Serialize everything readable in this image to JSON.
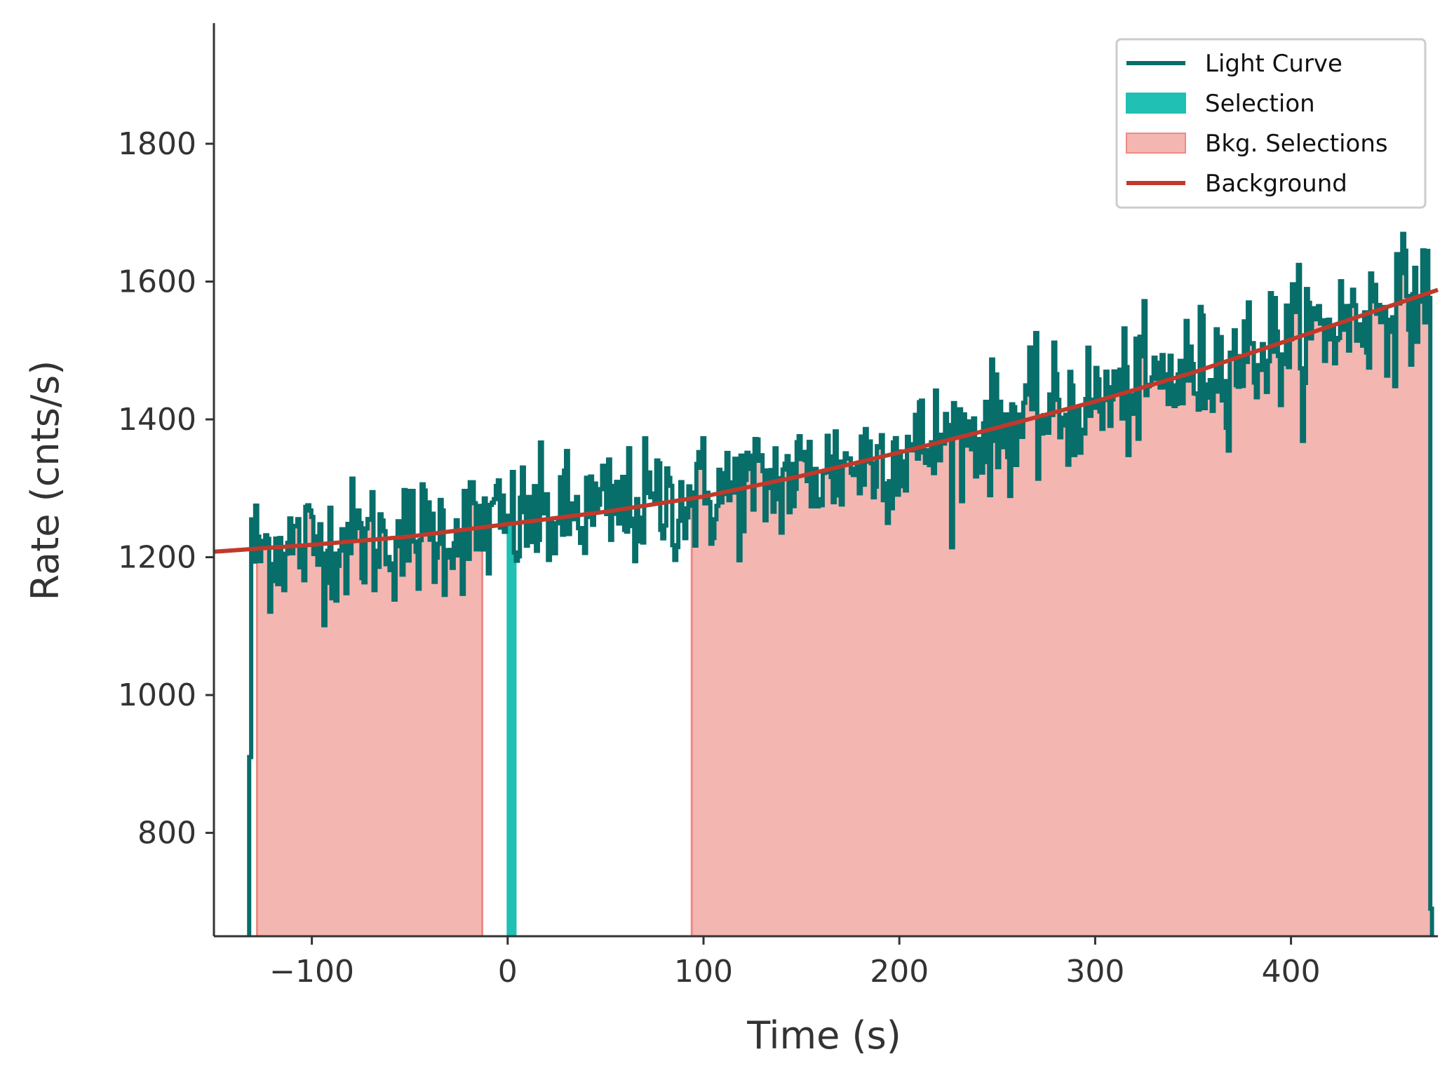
{
  "chart_data": {
    "type": "line",
    "title": "",
    "xlabel": "Time (s)",
    "ylabel": "Rate (cnts/s)",
    "xlim": [
      -150,
      475
    ],
    "ylim": [
      650,
      1975
    ],
    "x_ticks": [
      -100,
      0,
      100,
      200,
      300,
      400
    ],
    "x_tick_labels": [
      "−100",
      "0",
      "100",
      "200",
      "300",
      "400"
    ],
    "y_ticks": [
      800,
      1000,
      1200,
      1400,
      1600,
      1800
    ],
    "y_tick_labels": [
      "800",
      "1000",
      "1200",
      "1400",
      "1600",
      "1800"
    ],
    "grid": false,
    "legend_position": "top-right",
    "legend": [
      {
        "label": "Light Curve",
        "kind": "line",
        "color": "#076e6a"
      },
      {
        "label": "Selection",
        "kind": "patch",
        "color": "#20c0b4"
      },
      {
        "label": "Bkg. Selections",
        "kind": "patch",
        "color": "#f4b6b1",
        "edge": "#ee8a84"
      },
      {
        "label": "Background",
        "kind": "line",
        "color": "#c0392b"
      }
    ],
    "light_curve": {
      "name": "Light Curve",
      "color": "#076e6a",
      "t_start": -132,
      "t_end": 472,
      "bin_width": 1.024,
      "start_value": 910,
      "end_value": 690,
      "noise_sigma": 45
    },
    "selection": {
      "name": "Selection",
      "interval": [
        0,
        4
      ],
      "color": "#20c0b4"
    },
    "bkg_selections": {
      "name": "Bkg. Selections",
      "intervals": [
        [
          -128,
          -13
        ],
        [
          94,
          472
        ]
      ],
      "fill": "#f4b6b1",
      "edge": "#ee8a84"
    },
    "background": {
      "name": "Background",
      "color": "#c0392b",
      "x": [
        -150,
        -100,
        -50,
        0,
        50,
        100,
        150,
        200,
        250,
        300,
        350,
        400,
        475
      ],
      "y": [
        1208,
        1218,
        1230,
        1248,
        1266,
        1288,
        1318,
        1352,
        1388,
        1426,
        1468,
        1516,
        1588
      ]
    }
  }
}
